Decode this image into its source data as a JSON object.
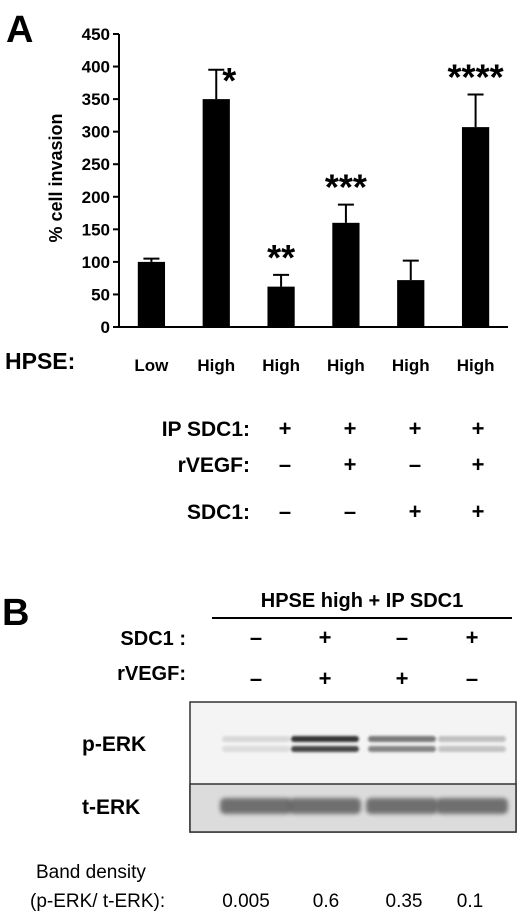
{
  "panel_a": {
    "label": "A",
    "hpse_label": "HPSE:",
    "hpse_values": [
      "Low",
      "High",
      "High",
      "High",
      "High",
      "High"
    ],
    "conditions": [
      {
        "label": "IP SDC1:",
        "values": [
          "+",
          "+",
          "+",
          "+"
        ]
      },
      {
        "label": "rVEGF:",
        "values": [
          "–",
          "+",
          "–",
          "+"
        ]
      },
      {
        "label": "SDC1:",
        "values": [
          "–",
          "–",
          "+",
          "+"
        ]
      }
    ]
  },
  "chart_data": {
    "type": "bar",
    "categories": [
      "Low",
      "High",
      "High",
      "High",
      "High",
      "High"
    ],
    "values": [
      100,
      350,
      62,
      160,
      72,
      307
    ],
    "errors": [
      5,
      45,
      18,
      28,
      30,
      50
    ],
    "annotations": [
      "",
      "*",
      "**",
      "***",
      "",
      "****"
    ],
    "ylabel": "% cell invasion",
    "xlabel": "",
    "title": "",
    "ylim": [
      0,
      450
    ],
    "yticks": [
      0,
      50,
      100,
      150,
      200,
      250,
      300,
      350,
      400,
      450
    ],
    "bar_color": "#000000"
  },
  "panel_b": {
    "label": "B",
    "header": "HPSE high + IP SDC1",
    "conditions": [
      {
        "label": "SDC1 :",
        "values": [
          "–",
          "+",
          "–",
          "+"
        ]
      },
      {
        "label": "rVEGF:",
        "values": [
          "–",
          "+",
          "+",
          "–"
        ]
      }
    ],
    "blot_labels": [
      "p-ERK",
      "t-ERK"
    ],
    "band_density_title": "Band density",
    "band_density_label": "(p-ERK/ t-ERK):",
    "band_density_values": [
      "0.005",
      "0.6",
      "0.35",
      "0.1"
    ]
  }
}
